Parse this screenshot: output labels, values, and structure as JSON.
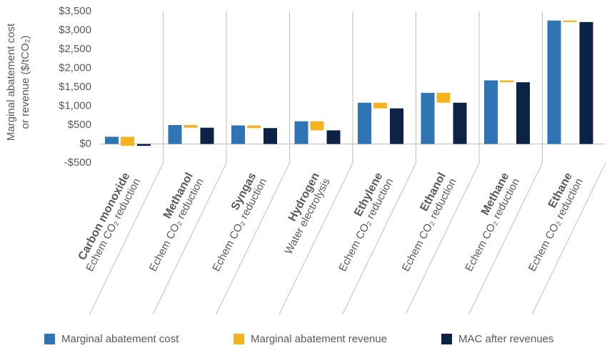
{
  "chart_data": {
    "type": "waterfall_group",
    "y_label": [
      "Marginal abatement cost",
      "or revenue ($/tCO₂)"
    ],
    "categories": [
      "Carbon monoxide",
      "Methanol",
      "Syngas",
      "Hydrogen",
      "Ethylene",
      "Ethanol",
      "Methane",
      "Ethane"
    ],
    "subcategories": [
      "Echem CO₂ reduction",
      "Echem CO₂ reduction",
      "Echem CO₂ reduction",
      "Water electrolysis",
      "Echem CO₂ reduction",
      "Echem CO₂ reduction",
      "Echem CO₂ reduction",
      "Echem CO₂ reduction"
    ],
    "series": [
      {
        "name": "Marginal abatement cost",
        "color": "#2f75b5",
        "values": [
          190,
          500,
          490,
          600,
          1090,
          1350,
          1680,
          3260
        ]
      },
      {
        "name": "Marginal abatement revenue",
        "color": "#f5b320",
        "values": [
          240,
          70,
          70,
          240,
          150,
          260,
          50,
          40
        ]
      },
      {
        "name": "MAC after revenues",
        "color": "#0c2246",
        "values": [
          -50,
          430,
          420,
          360,
          940,
          1090,
          1630,
          3220
        ]
      }
    ],
    "ylim": [
      -500,
      3500
    ],
    "yticks": [
      {
        "value": -500,
        "label": "-$500"
      },
      {
        "value": 0,
        "label": "$0"
      },
      {
        "value": 500,
        "label": "$500"
      },
      {
        "value": 1000,
        "label": "$1,000"
      },
      {
        "value": 1500,
        "label": "$1,500"
      },
      {
        "value": 2000,
        "label": "$2,000"
      },
      {
        "value": 2500,
        "label": "$2,500"
      },
      {
        "value": 3000,
        "label": "$3,000"
      },
      {
        "value": 3500,
        "label": "$3,500"
      }
    ]
  }
}
